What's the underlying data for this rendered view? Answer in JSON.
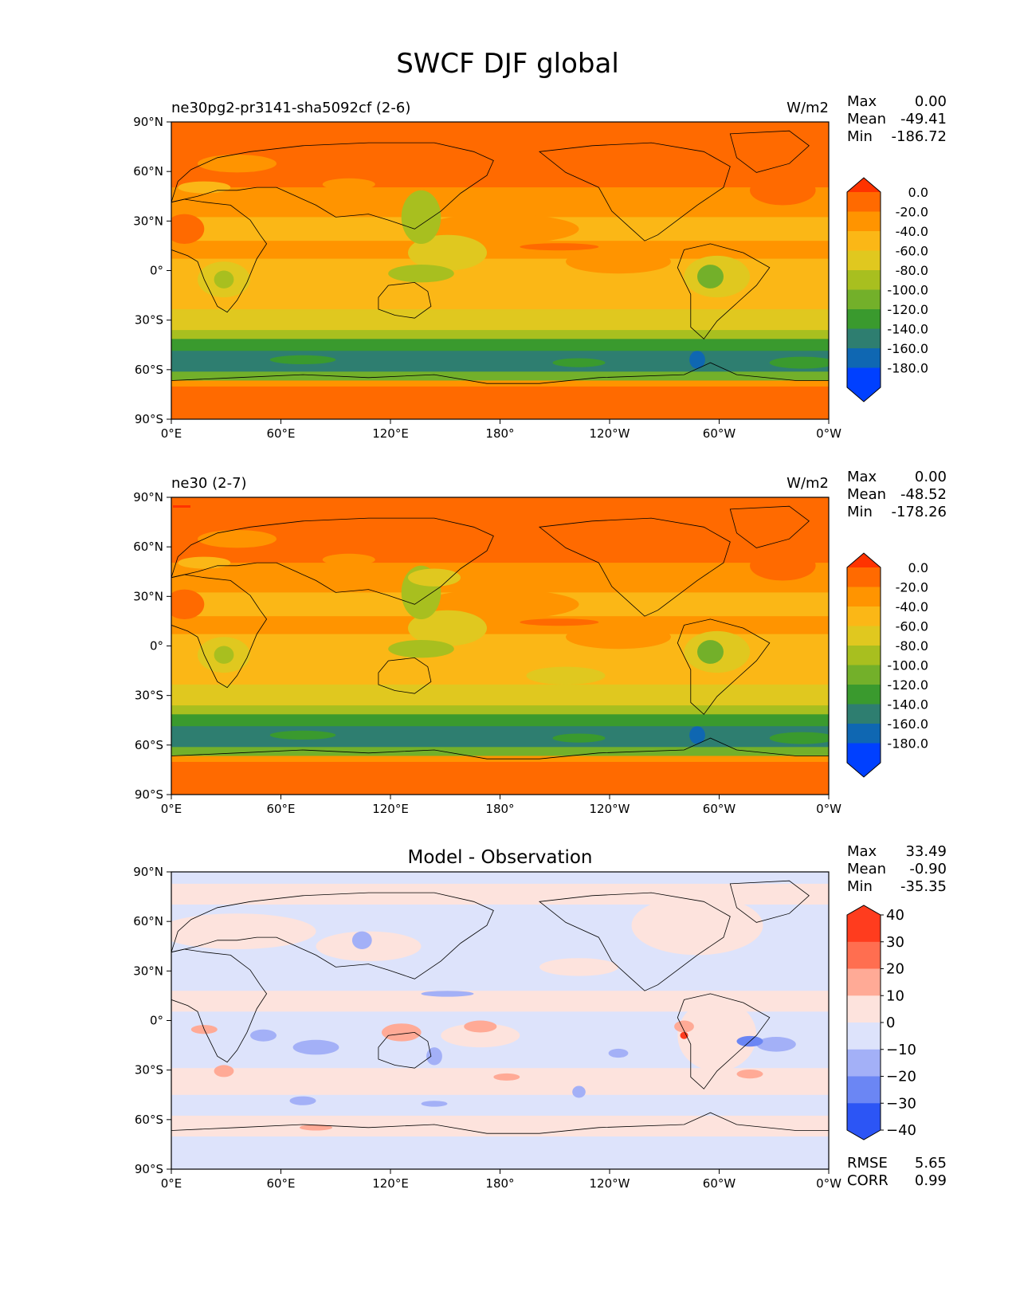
{
  "figure": {
    "title": "SWCF DJF global"
  },
  "chart_data": [
    {
      "type": "heatmap",
      "title": "ne30pg2-pr3141-sha5092cf (2-6)",
      "units": "W/m2",
      "stats": [
        {
          "label": "Max",
          "value": "0.00"
        },
        {
          "label": "Mean",
          "value": "-49.41"
        },
        {
          "label": "Min",
          "value": "-186.72"
        }
      ],
      "x_ticks": [
        "0°E",
        "60°E",
        "120°E",
        "180°",
        "120°W",
        "60°W",
        "0°W"
      ],
      "y_ticks": [
        "90°N",
        "60°N",
        "30°N",
        "0°",
        "30°S",
        "60°S",
        "90°S"
      ],
      "colorbar": {
        "levels": [
          -200,
          -180,
          -160,
          -140,
          -120,
          -100,
          -80,
          -60,
          -40,
          -20,
          0
        ],
        "labels": [
          "0.0",
          "-20.0",
          "-40.0",
          "-60.0",
          "-80.0",
          "-100.0",
          "-120.0",
          "-140.0",
          "-160.0",
          "-180.0"
        ],
        "colors": [
          "#ff3300",
          "#ff6a00",
          "#ff9400",
          "#fbb716",
          "#e0c81f",
          "#a8bf1f",
          "#73b02a",
          "#3a9a2e",
          "#2e7e70",
          "#0f67b2",
          "#0040ff"
        ],
        "extend": "both"
      }
    },
    {
      "type": "heatmap",
      "title": "ne30 (2-7)",
      "units": "W/m2",
      "stats": [
        {
          "label": "Max",
          "value": "0.00"
        },
        {
          "label": "Mean",
          "value": "-48.52"
        },
        {
          "label": "Min",
          "value": "-178.26"
        }
      ],
      "x_ticks": [
        "0°E",
        "60°E",
        "120°E",
        "180°",
        "120°W",
        "60°W",
        "0°W"
      ],
      "y_ticks": [
        "90°N",
        "60°N",
        "30°N",
        "0°",
        "30°S",
        "60°S",
        "90°S"
      ],
      "colorbar": {
        "levels": [
          -200,
          -180,
          -160,
          -140,
          -120,
          -100,
          -80,
          -60,
          -40,
          -20,
          0
        ],
        "labels": [
          "0.0",
          "-20.0",
          "-40.0",
          "-60.0",
          "-80.0",
          "-100.0",
          "-120.0",
          "-140.0",
          "-160.0",
          "-180.0"
        ],
        "colors": [
          "#ff3300",
          "#ff6a00",
          "#ff9400",
          "#fbb716",
          "#e0c81f",
          "#a8bf1f",
          "#73b02a",
          "#3a9a2e",
          "#2e7e70",
          "#0f67b2",
          "#0040ff"
        ],
        "extend": "both"
      }
    },
    {
      "type": "heatmap",
      "title": "Model - Observation",
      "units": "",
      "stats": [
        {
          "label": "Max",
          "value": "33.49"
        },
        {
          "label": "Mean",
          "value": "-0.90"
        },
        {
          "label": "Min",
          "value": "-35.35"
        }
      ],
      "metrics": [
        {
          "label": "RMSE",
          "value": "5.65"
        },
        {
          "label": "CORR",
          "value": "0.99"
        }
      ],
      "x_ticks": [
        "0°E",
        "60°E",
        "120°E",
        "180°",
        "120°W",
        "60°W",
        "0°W"
      ],
      "y_ticks": [
        "90°N",
        "60°N",
        "30°N",
        "0°",
        "30°S",
        "60°S",
        "90°S"
      ],
      "colorbar": {
        "levels": [
          -40,
          -30,
          -20,
          -10,
          0,
          10,
          20,
          30,
          40
        ],
        "labels": [
          "40",
          "30",
          "20",
          "10",
          "0",
          "−10",
          "−20",
          "−30",
          "−40"
        ],
        "colors": [
          "#ff3c1e",
          "#ff6e50",
          "#ffaa96",
          "#fde3dd",
          "#dde3fb",
          "#a3b0f7",
          "#6b86f4",
          "#2c55f5"
        ],
        "extend": "both"
      }
    }
  ]
}
